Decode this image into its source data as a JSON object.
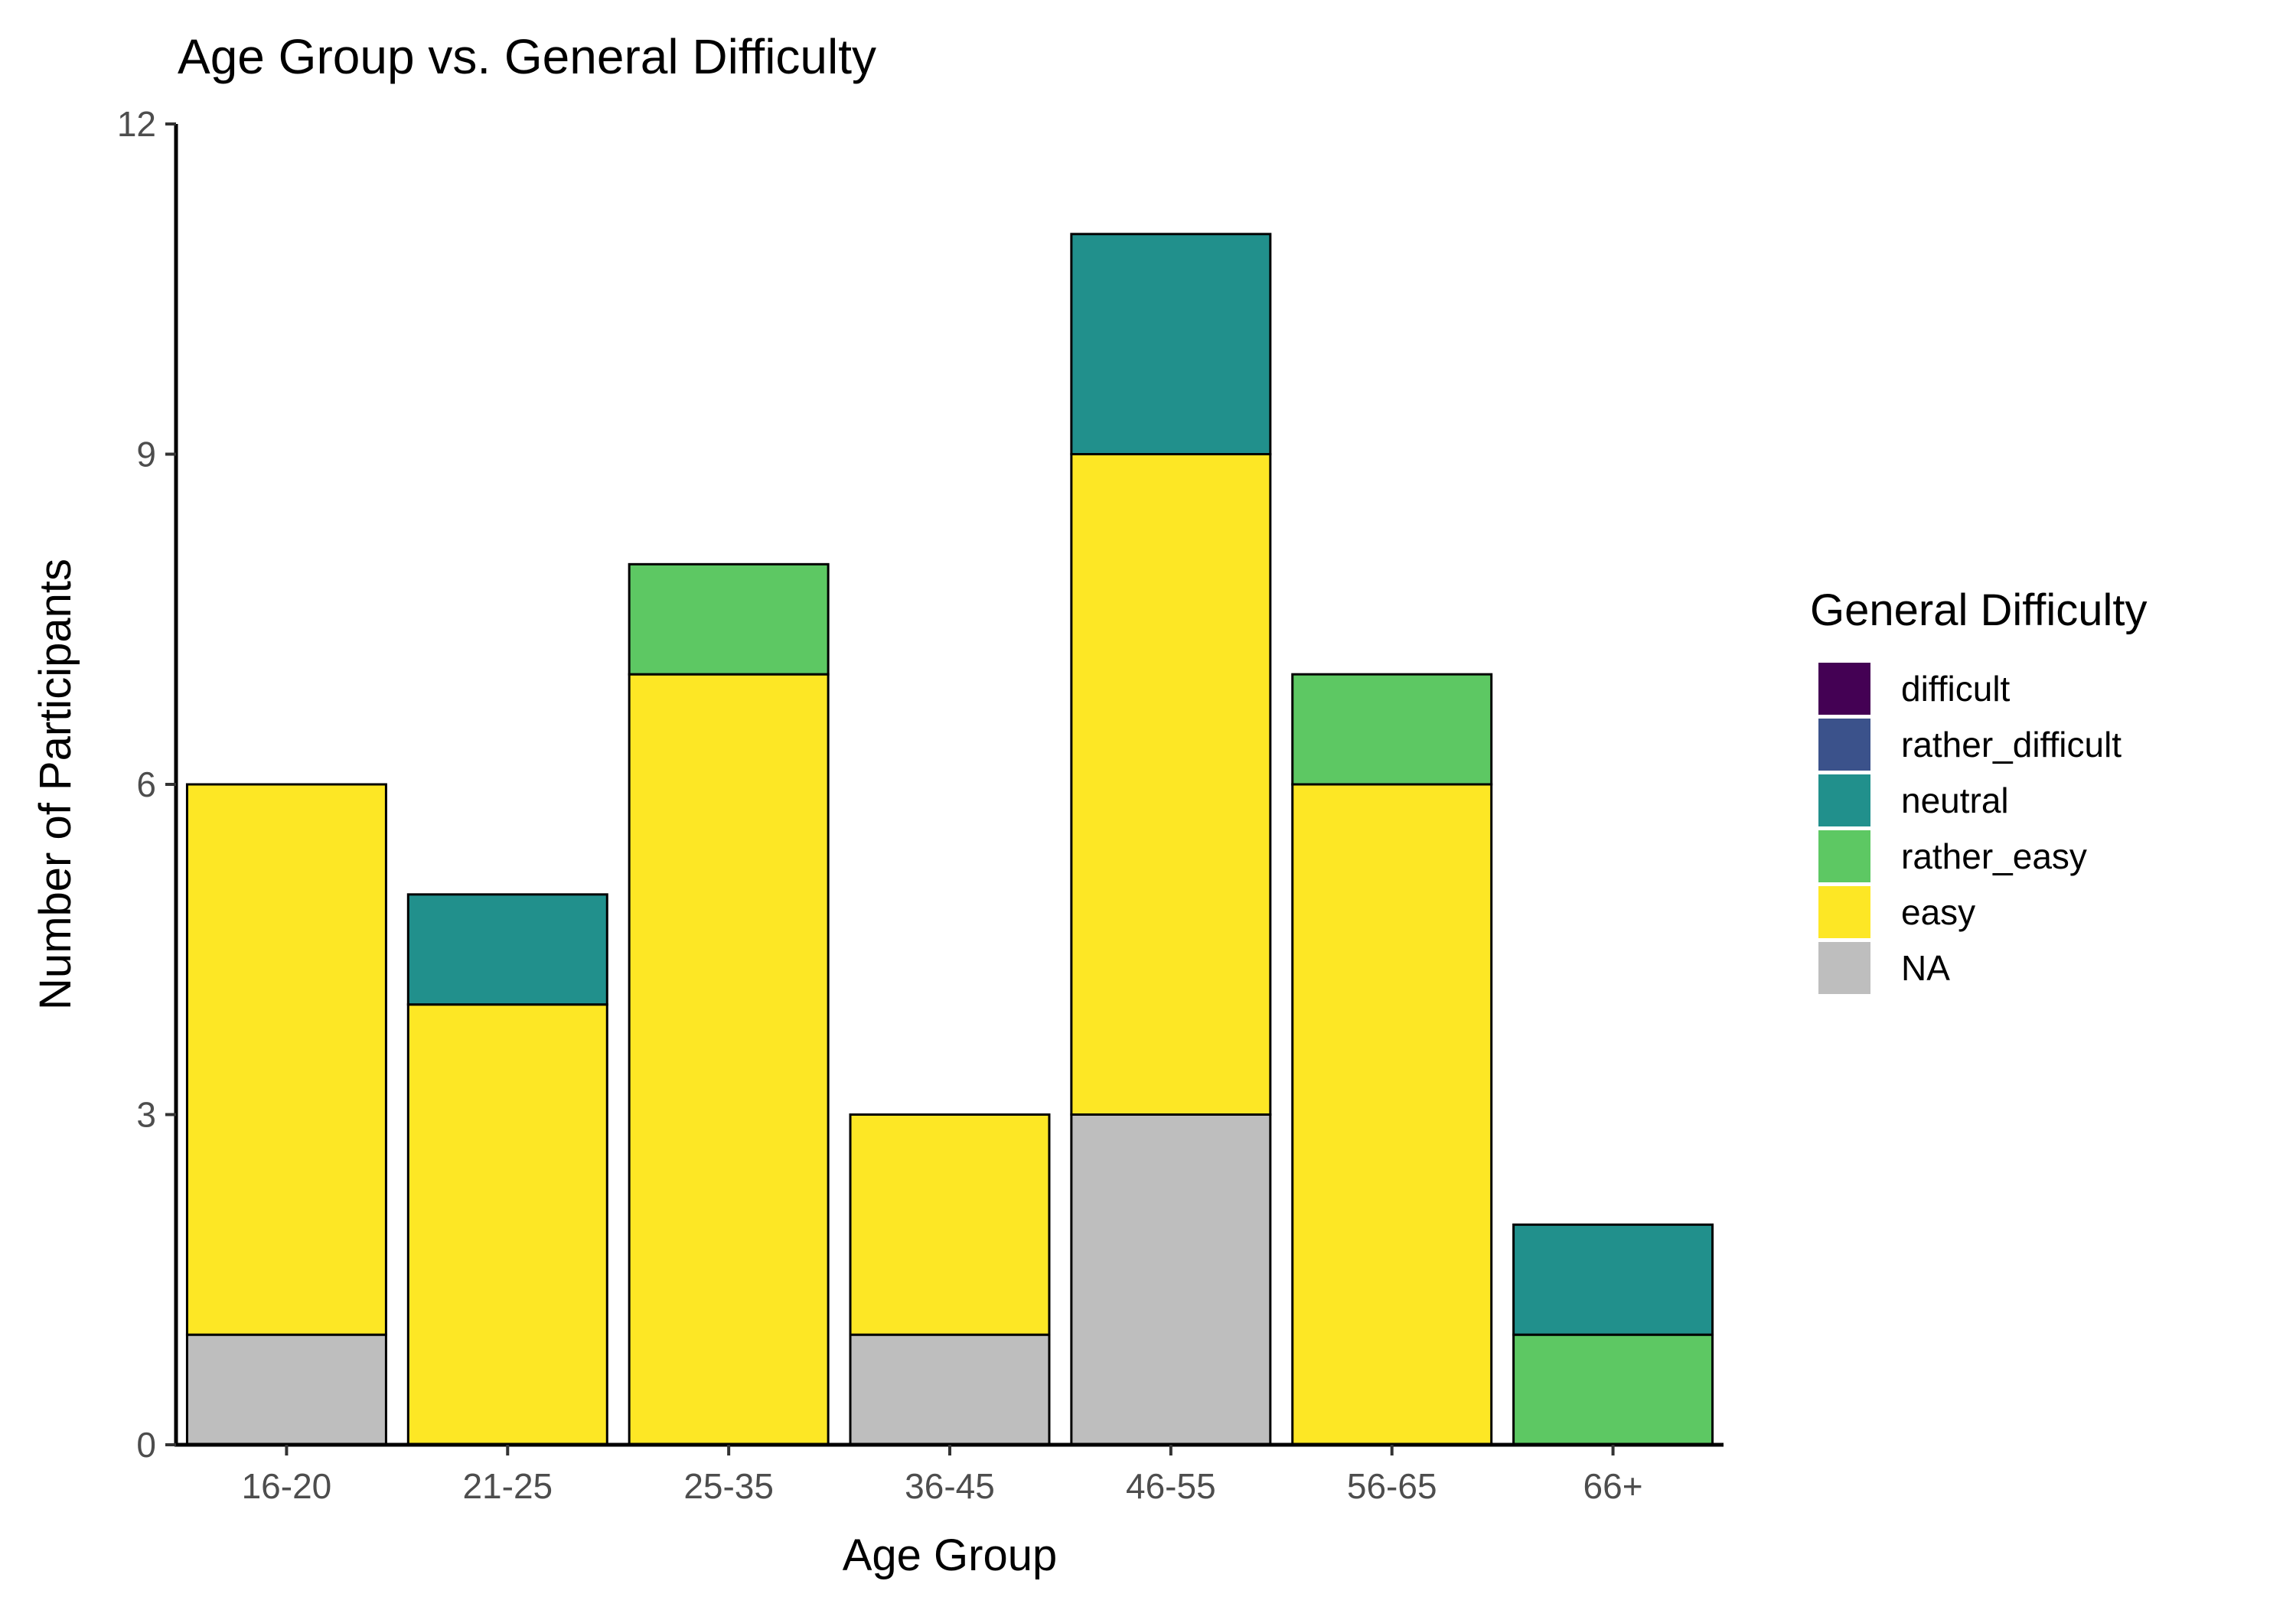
{
  "chart_data": {
    "type": "bar",
    "stacked": true,
    "title": "Age Group vs. General Difficulty",
    "xlabel": "Age Group",
    "ylabel": "Number of Participants",
    "ylim": [
      0,
      12
    ],
    "yticks": [
      0,
      3,
      6,
      9,
      12
    ],
    "grid": false,
    "legend_position": "right",
    "legend_title": "General Difficulty",
    "categories": [
      "16-20",
      "21-25",
      "25-35",
      "36-45",
      "46-55",
      "56-65",
      "66+"
    ],
    "series": [
      {
        "name": "difficult",
        "color": "#440154",
        "values": [
          0,
          0,
          0,
          0,
          0,
          0,
          0
        ]
      },
      {
        "name": "rather_difficult",
        "color": "#3B528B",
        "values": [
          0,
          0,
          0,
          0,
          0,
          0,
          0
        ]
      },
      {
        "name": "neutral",
        "color": "#21908C",
        "values": [
          0,
          1,
          0,
          0,
          2,
          0,
          1
        ]
      },
      {
        "name": "rather_easy",
        "color": "#5DC863",
        "values": [
          0,
          0,
          1,
          0,
          0,
          1,
          1
        ]
      },
      {
        "name": "easy",
        "color": "#FDE725",
        "values": [
          5,
          4,
          7,
          2,
          6,
          6,
          0
        ]
      },
      {
        "name": "NA",
        "color": "#BEBEBE",
        "values": [
          1,
          0,
          0,
          1,
          3,
          0,
          0
        ]
      }
    ]
  }
}
